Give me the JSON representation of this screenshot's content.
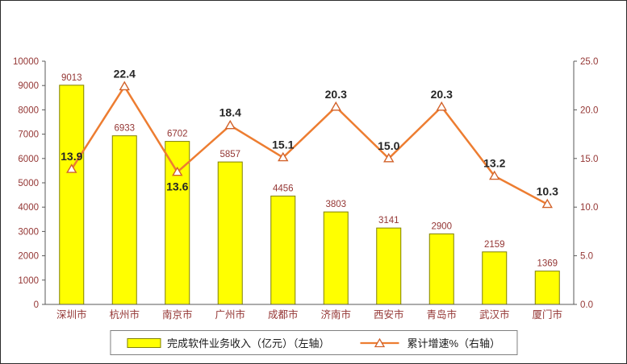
{
  "legend": {
    "bar_label": "完成软件业务收入（亿元）（左轴）",
    "line_label": "累计增速%（右轴）"
  },
  "chart_data": {
    "type": "bar",
    "categories": [
      "深圳市",
      "杭州市",
      "南京市",
      "广州市",
      "成都市",
      "济南市",
      "西安市",
      "青岛市",
      "武汉市",
      "厦门市"
    ],
    "series": [
      {
        "name": "完成软件业务收入（亿元）（左轴）",
        "type": "bar",
        "axis": "left",
        "values": [
          9013,
          6933,
          6702,
          5857,
          4456,
          3803,
          3141,
          2900,
          2159,
          1369
        ]
      },
      {
        "name": "累计增速%（右轴）",
        "type": "line",
        "axis": "right",
        "values": [
          13.9,
          22.4,
          13.6,
          18.4,
          15.1,
          20.3,
          15.0,
          20.3,
          13.2,
          10.3
        ],
        "label_position": [
          "above",
          "above",
          "below",
          "above",
          "above",
          "above",
          "above",
          "above",
          "above",
          "above"
        ]
      }
    ],
    "left_axis": {
      "min": 0,
      "max": 10000,
      "step": 1000
    },
    "right_axis": {
      "min": 0,
      "max": 25,
      "step": 5
    },
    "grid": "off",
    "legend_position": "bottom",
    "colors": {
      "bar_fill": "#FFFF00",
      "bar_border": "#808000",
      "line": "#ED7D31",
      "marker_fill": "#FFFFFF",
      "marker_edge": "#D2622A",
      "text": "#943634",
      "line_label": "#262626",
      "axis": "#595959"
    }
  }
}
